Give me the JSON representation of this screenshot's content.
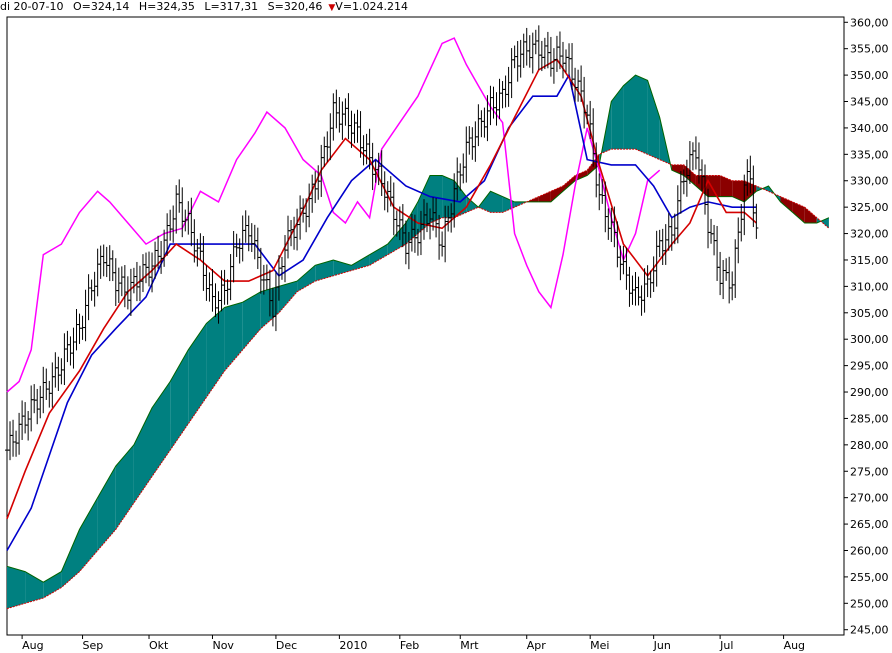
{
  "header": {
    "date": "di 20-07-10",
    "open": "O=324,14",
    "high": "H=324,35",
    "low": "L=317,31",
    "close": "S=320,46",
    "volume": "V=1.024.214"
  },
  "colors": {
    "candle": "#000000",
    "tenkan": "#d40000",
    "kijun": "#0000cc",
    "chikou": "#ff00ff",
    "cloud_bull": "#008080",
    "cloud_bear": "#8b0000",
    "span_a": "#006400",
    "span_b": "#cc0000"
  },
  "chart_data": {
    "type": "line",
    "title": "",
    "xlabel": "",
    "ylabel": "",
    "ylim": [
      244,
      361
    ],
    "xlim": [
      0,
      277
    ],
    "y_axis_side": "right",
    "grid": false,
    "x_ticks": [
      {
        "label": "Aug",
        "x": 5
      },
      {
        "label": "Sep",
        "x": 25
      },
      {
        "label": "Okt",
        "x": 47
      },
      {
        "label": "Nov",
        "x": 68
      },
      {
        "label": "Dec",
        "x": 89
      },
      {
        "label": "2010",
        "x": 110
      },
      {
        "label": "Feb",
        "x": 130
      },
      {
        "label": "Mrt",
        "x": 150
      },
      {
        "label": "Apr",
        "x": 172
      },
      {
        "label": "Mei",
        "x": 193
      },
      {
        "label": "Jun",
        "x": 214
      },
      {
        "label": "Jul",
        "x": 236
      },
      {
        "label": "Aug",
        "x": 257
      }
    ],
    "y_ticks": [
      "245,00",
      "250,00",
      "255,00",
      "260,00",
      "265,00",
      "270,00",
      "275,00",
      "280,00",
      "285,00",
      "290,00",
      "295,00",
      "300,00",
      "305,00",
      "310,00",
      "315,00",
      "320,00",
      "325,00",
      "330,00",
      "335,00",
      "340,00",
      "345,00",
      "350,00",
      "355,00",
      "360,00"
    ],
    "price": [
      [
        0,
        279
      ],
      [
        4,
        283
      ],
      [
        8,
        287
      ],
      [
        12,
        290
      ],
      [
        16,
        293
      ],
      [
        20,
        298
      ],
      [
        24,
        302
      ],
      [
        28,
        310
      ],
      [
        32,
        316
      ],
      [
        36,
        311
      ],
      [
        40,
        309
      ],
      [
        44,
        312
      ],
      [
        48,
        314
      ],
      [
        52,
        318
      ],
      [
        56,
        326
      ],
      [
        60,
        322
      ],
      [
        64,
        315
      ],
      [
        68,
        307
      ],
      [
        72,
        309
      ],
      [
        76,
        318
      ],
      [
        80,
        321
      ],
      [
        84,
        313
      ],
      [
        88,
        306
      ],
      [
        92,
        318
      ],
      [
        96,
        322
      ],
      [
        100,
        326
      ],
      [
        104,
        333
      ],
      [
        108,
        343
      ],
      [
        112,
        342
      ],
      [
        116,
        339
      ],
      [
        120,
        334
      ],
      [
        124,
        330
      ],
      [
        128,
        324
      ],
      [
        132,
        318
      ],
      [
        136,
        320
      ],
      [
        140,
        324
      ],
      [
        144,
        318
      ],
      [
        148,
        328
      ],
      [
        152,
        336
      ],
      [
        156,
        340
      ],
      [
        160,
        344
      ],
      [
        164,
        346
      ],
      [
        168,
        353
      ],
      [
        172,
        355
      ],
      [
        176,
        355
      ],
      [
        180,
        353
      ],
      [
        184,
        354
      ],
      [
        188,
        349
      ],
      [
        192,
        343
      ],
      [
        196,
        327
      ],
      [
        200,
        321
      ],
      [
        204,
        313
      ],
      [
        208,
        308
      ],
      [
        212,
        310
      ],
      [
        216,
        318
      ],
      [
        220,
        320
      ],
      [
        224,
        331
      ],
      [
        228,
        336
      ],
      [
        232,
        322
      ],
      [
        236,
        312
      ],
      [
        240,
        311
      ],
      [
        244,
        329
      ],
      [
        246,
        331
      ],
      [
        248,
        320
      ]
    ],
    "series": [
      {
        "values": [
          [
            0,
            266
          ],
          [
            6,
            275
          ],
          [
            14,
            286
          ],
          [
            24,
            294
          ],
          [
            32,
            302
          ],
          [
            40,
            309
          ],
          [
            48,
            313
          ],
          [
            56,
            318
          ],
          [
            64,
            315
          ],
          [
            72,
            311
          ],
          [
            80,
            311
          ],
          [
            88,
            313
          ],
          [
            96,
            322
          ],
          [
            104,
            332
          ],
          [
            112,
            338
          ],
          [
            120,
            334
          ],
          [
            128,
            325
          ],
          [
            136,
            322
          ],
          [
            144,
            321
          ],
          [
            152,
            325
          ],
          [
            160,
            333
          ],
          [
            168,
            342
          ],
          [
            176,
            351
          ],
          [
            182,
            353
          ],
          [
            190,
            346
          ],
          [
            196,
            333
          ],
          [
            204,
            318
          ],
          [
            212,
            312
          ],
          [
            220,
            318
          ],
          [
            226,
            322
          ],
          [
            232,
            330
          ],
          [
            238,
            324
          ],
          [
            244,
            324
          ],
          [
            248,
            322
          ]
        ]
      },
      {
        "values": [
          [
            0,
            260
          ],
          [
            4,
            264
          ],
          [
            8,
            268
          ],
          [
            14,
            278
          ],
          [
            20,
            288
          ],
          [
            28,
            297
          ],
          [
            36,
            302
          ],
          [
            46,
            308
          ],
          [
            54,
            318
          ],
          [
            64,
            318
          ],
          [
            72,
            318
          ],
          [
            82,
            318
          ],
          [
            90,
            312
          ],
          [
            98,
            315
          ],
          [
            106,
            323
          ],
          [
            114,
            330
          ],
          [
            122,
            334
          ],
          [
            132,
            329
          ],
          [
            140,
            327
          ],
          [
            150,
            326
          ],
          [
            158,
            330
          ],
          [
            166,
            340
          ],
          [
            174,
            346
          ],
          [
            182,
            346
          ],
          [
            186,
            350
          ],
          [
            192,
            334
          ],
          [
            200,
            333
          ],
          [
            208,
            333
          ],
          [
            214,
            329
          ],
          [
            220,
            323
          ],
          [
            226,
            325
          ],
          [
            232,
            326
          ],
          [
            240,
            325
          ],
          [
            248,
            325
          ]
        ]
      },
      {
        "values": [
          [
            0,
            290
          ],
          [
            4,
            292
          ],
          [
            8,
            298
          ],
          [
            12,
            316
          ],
          [
            18,
            318
          ],
          [
            24,
            324
          ],
          [
            30,
            328
          ],
          [
            34,
            326
          ],
          [
            40,
            322
          ],
          [
            46,
            318
          ],
          [
            52,
            320
          ],
          [
            58,
            321
          ],
          [
            64,
            328
          ],
          [
            70,
            326
          ],
          [
            76,
            334
          ],
          [
            82,
            339
          ],
          [
            86,
            343
          ],
          [
            92,
            340
          ],
          [
            98,
            334
          ],
          [
            104,
            331
          ],
          [
            108,
            324
          ],
          [
            112,
            322
          ],
          [
            116,
            326
          ],
          [
            120,
            323
          ],
          [
            124,
            336
          ],
          [
            130,
            341
          ],
          [
            136,
            346
          ],
          [
            140,
            351
          ],
          [
            144,
            356
          ],
          [
            148,
            357
          ],
          [
            152,
            352
          ],
          [
            156,
            348
          ],
          [
            160,
            344
          ],
          [
            164,
            341
          ],
          [
            168,
            320
          ],
          [
            172,
            314
          ],
          [
            176,
            309
          ],
          [
            180,
            306
          ],
          [
            184,
            316
          ],
          [
            188,
            329
          ],
          [
            192,
            340
          ],
          [
            196,
            332
          ],
          [
            200,
            323
          ],
          [
            204,
            315
          ],
          [
            208,
            320
          ],
          [
            212,
            330
          ],
          [
            216,
            332
          ]
        ]
      },
      {
        "values": [
          [
            0,
            257
          ],
          [
            6,
            256
          ],
          [
            12,
            254
          ],
          [
            18,
            256
          ],
          [
            24,
            264
          ],
          [
            30,
            270
          ],
          [
            36,
            276
          ],
          [
            42,
            280
          ],
          [
            48,
            287
          ],
          [
            54,
            292
          ],
          [
            60,
            298
          ],
          [
            66,
            303
          ],
          [
            72,
            306
          ],
          [
            78,
            307
          ],
          [
            84,
            309
          ],
          [
            90,
            310
          ],
          [
            96,
            311
          ],
          [
            102,
            314
          ],
          [
            108,
            315
          ],
          [
            114,
            314
          ],
          [
            120,
            316
          ],
          [
            126,
            318
          ],
          [
            132,
            322
          ],
          [
            136,
            326
          ],
          [
            140,
            331
          ],
          [
            144,
            331
          ],
          [
            148,
            330
          ],
          [
            152,
            327
          ],
          [
            156,
            325
          ],
          [
            160,
            328
          ],
          [
            164,
            327
          ],
          [
            168,
            326
          ],
          [
            172,
            326
          ],
          [
            176,
            326
          ],
          [
            180,
            326
          ],
          [
            184,
            328
          ],
          [
            188,
            330
          ],
          [
            192,
            331
          ],
          [
            196,
            333
          ],
          [
            200,
            345
          ],
          [
            204,
            348
          ],
          [
            208,
            350
          ],
          [
            212,
            349
          ],
          [
            216,
            342
          ],
          [
            220,
            332
          ],
          [
            224,
            331
          ],
          [
            228,
            329
          ],
          [
            232,
            327
          ],
          [
            236,
            327
          ],
          [
            240,
            327
          ],
          [
            244,
            326
          ],
          [
            248,
            328
          ],
          [
            252,
            329
          ],
          [
            256,
            326
          ],
          [
            260,
            324
          ],
          [
            264,
            322
          ],
          [
            268,
            322
          ],
          [
            272,
            323
          ]
        ]
      },
      {
        "values": [
          [
            0,
            249
          ],
          [
            6,
            250
          ],
          [
            12,
            251
          ],
          [
            18,
            253
          ],
          [
            24,
            256
          ],
          [
            30,
            260
          ],
          [
            36,
            264
          ],
          [
            42,
            269
          ],
          [
            48,
            274
          ],
          [
            54,
            279
          ],
          [
            60,
            284
          ],
          [
            66,
            289
          ],
          [
            72,
            294
          ],
          [
            78,
            298
          ],
          [
            84,
            302
          ],
          [
            90,
            305
          ],
          [
            96,
            309
          ],
          [
            102,
            311
          ],
          [
            108,
            312
          ],
          [
            114,
            313
          ],
          [
            120,
            314
          ],
          [
            126,
            316
          ],
          [
            132,
            318
          ],
          [
            136,
            320
          ],
          [
            140,
            322
          ],
          [
            144,
            323
          ],
          [
            148,
            323
          ],
          [
            152,
            324
          ],
          [
            156,
            325
          ],
          [
            160,
            324
          ],
          [
            164,
            324
          ],
          [
            168,
            325
          ],
          [
            172,
            326
          ],
          [
            176,
            327
          ],
          [
            180,
            328
          ],
          [
            184,
            329
          ],
          [
            188,
            331
          ],
          [
            192,
            332
          ],
          [
            196,
            335
          ],
          [
            200,
            336
          ],
          [
            204,
            336
          ],
          [
            208,
            336
          ],
          [
            212,
            335
          ],
          [
            216,
            334
          ],
          [
            220,
            333
          ],
          [
            224,
            333
          ],
          [
            228,
            331
          ],
          [
            232,
            331
          ],
          [
            236,
            331
          ],
          [
            240,
            330
          ],
          [
            244,
            330
          ],
          [
            248,
            329
          ],
          [
            252,
            328
          ],
          [
            256,
            327
          ],
          [
            260,
            326
          ],
          [
            264,
            325
          ],
          [
            268,
            323
          ],
          [
            272,
            321
          ]
        ]
      }
    ]
  }
}
